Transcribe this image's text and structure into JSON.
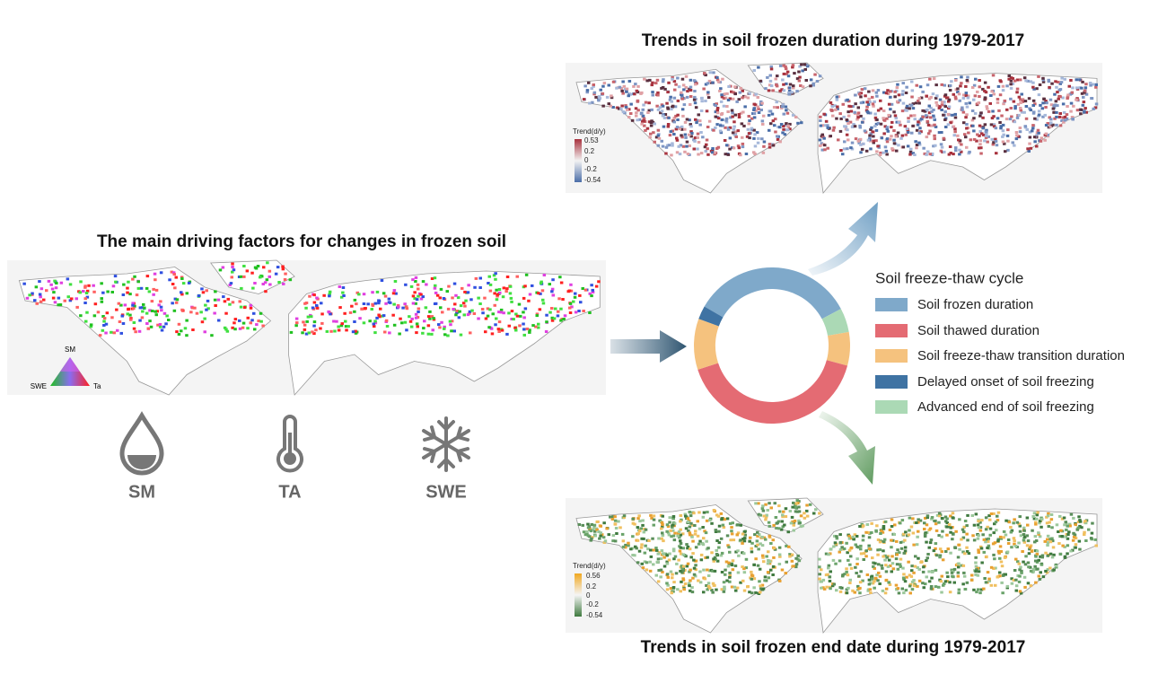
{
  "left_panel": {
    "title": "The main driving factors for changes in frozen soil",
    "ternary_legend": {
      "top": "SM",
      "left": "SWE",
      "right": "Ta"
    },
    "factors": [
      "SM",
      "TA",
      "SWE"
    ]
  },
  "cycle": {
    "title": "Soil freeze-thaw cycle",
    "items": [
      "Soil frozen duration",
      "Soil thawed duration",
      "Soil freeze-thaw transition duration",
      "Delayed onset of soil freezing",
      "Advanced end of soil freezing"
    ]
  },
  "top_panel": {
    "title": "Trends in soil frozen duration during 1979-2017",
    "colorbar": {
      "title": "Trend(d/y)",
      "labels": [
        "0.53",
        "0.2",
        "0",
        "-0.2",
        "-0.54"
      ]
    }
  },
  "bottom_panel": {
    "title": "Trends in soil frozen end date during 1979-2017",
    "colorbar": {
      "title": "Trend(d/y)",
      "labels": [
        "0.56",
        "0.2",
        "0",
        "-0.2",
        "-0.54"
      ]
    }
  }
}
